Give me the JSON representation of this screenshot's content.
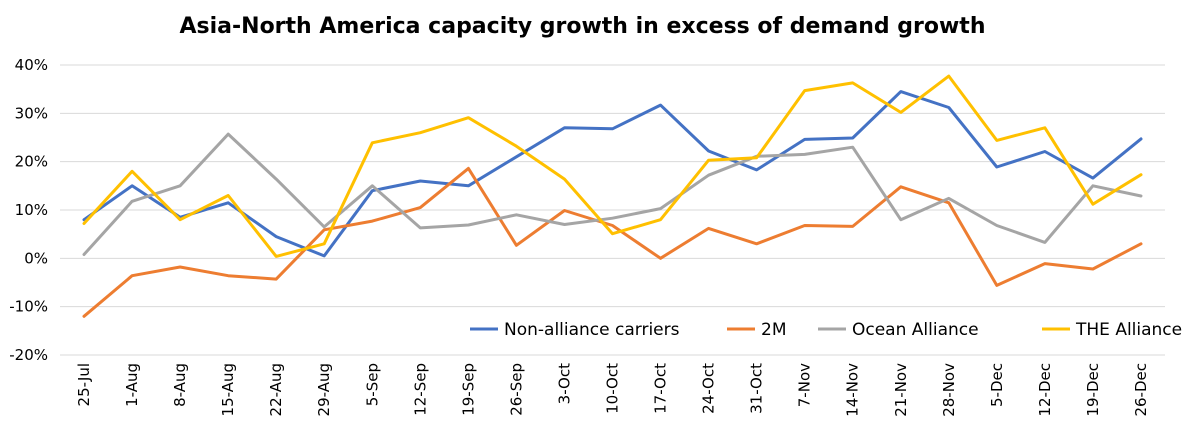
{
  "chart_data": {
    "type": "line",
    "title": "Asia-North America capacity growth in excess of demand growth",
    "xlabel": "",
    "ylabel": "",
    "ylim": [
      -20,
      40
    ],
    "y_ticks": [
      "40%",
      "30%",
      "20%",
      "10%",
      "0%",
      "-10%",
      "-20%"
    ],
    "grid": true,
    "legend_position": "bottom-right",
    "categories": [
      "25-Jul",
      "1-Aug",
      "8-Aug",
      "15-Aug",
      "22-Aug",
      "29-Aug",
      "5-Sep",
      "12-Sep",
      "19-Sep",
      "26-Sep",
      "3-Oct",
      "10-Oct",
      "17-Oct",
      "24-Oct",
      "31-Oct",
      "7-Nov",
      "14-Nov",
      "21-Nov",
      "28-Nov",
      "5-Dec",
      "12-Dec",
      "19-Dec",
      "26-Dec"
    ],
    "series": [
      {
        "name": "Non-alliance carriers",
        "color": "#4472C4",
        "values": [
          8,
          15,
          8.5,
          11.5,
          4.5,
          0.5,
          14,
          16,
          15,
          21,
          27,
          26.8,
          31.7,
          22.2,
          18.3,
          24.6,
          24.9,
          34.5,
          31.2,
          18.9,
          22.1,
          16.6,
          24.7
        ]
      },
      {
        "name": "2M",
        "color": "#ED7D31",
        "values": [
          -12,
          -3.6,
          -1.8,
          -3.6,
          -4.3,
          5.9,
          7.7,
          10.5,
          18.6,
          2.7,
          9.9,
          6.8,
          0,
          6.2,
          3,
          6.8,
          6.6,
          14.8,
          11.5,
          -5.6,
          -1.1,
          -2.2,
          3
        ]
      },
      {
        "name": "Ocean Alliance",
        "color": "#A5A5A5",
        "values": [
          0.8,
          11.8,
          15,
          25.7,
          16.4,
          6.5,
          15,
          6.3,
          6.9,
          9,
          7,
          8.3,
          10.3,
          17.2,
          21.1,
          21.5,
          23,
          8,
          12.4,
          6.8,
          3.3,
          15,
          12.9
        ]
      },
      {
        "name": "THE Alliance",
        "color": "#FFC000",
        "values": [
          7.2,
          18,
          8,
          13,
          0.4,
          3,
          23.9,
          26,
          29.1,
          23.2,
          16.4,
          5.1,
          8,
          20.3,
          20.8,
          34.7,
          36.3,
          30.2,
          37.7,
          24.4,
          27,
          11.2,
          17.3
        ]
      }
    ]
  }
}
